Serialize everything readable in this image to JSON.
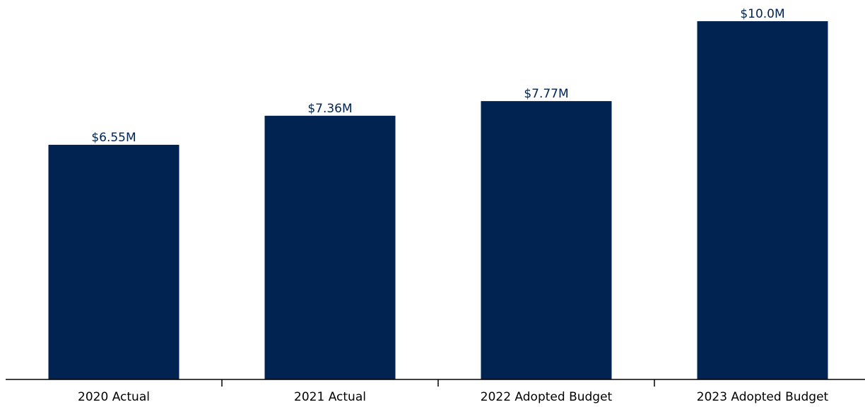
{
  "chart_data": {
    "type": "bar",
    "categories": [
      "2020 Actual",
      "2021 Actual",
      "2022 Adopted Budget",
      "2023 Adopted Budget"
    ],
    "values": [
      6.55,
      7.36,
      7.77,
      10.0
    ],
    "data_labels": [
      "$6.55M",
      "$7.36M",
      "$7.77M",
      "$10.0M"
    ],
    "title": "",
    "xlabel": "",
    "ylabel": "",
    "ylim": [
      0,
      10.0
    ],
    "grid": false,
    "legend": "none"
  },
  "colors": {
    "bar": "#002352",
    "label_text": "#002352",
    "axis": "#000000"
  }
}
